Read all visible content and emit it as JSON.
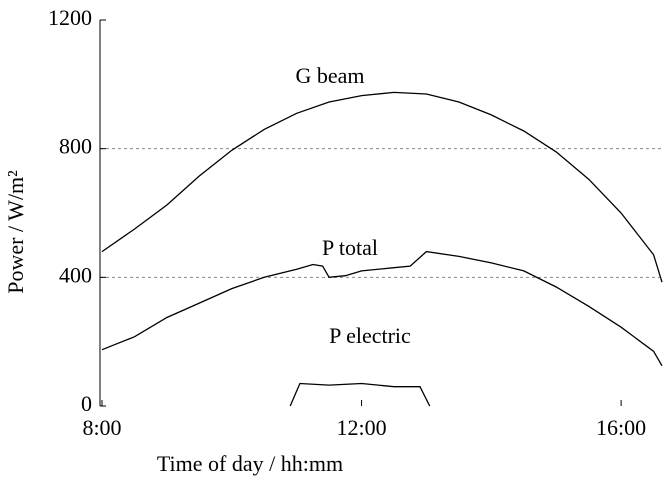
{
  "chart_data": {
    "type": "line",
    "xlabel": "Time of day / hh:mm",
    "ylabel": "Power / W/m²",
    "xlim": [
      8,
      16.63
    ],
    "ylim": [
      0,
      1200
    ],
    "xticks": [
      {
        "value": 8,
        "label": "8:00"
      },
      {
        "value": 12,
        "label": "12:00"
      },
      {
        "value": 16,
        "label": "16:00"
      }
    ],
    "yticks": [
      0,
      400,
      800,
      1200
    ],
    "grid_values": [
      400,
      800
    ],
    "series": [
      {
        "name": "G beam",
        "color": "#000000",
        "x": [
          8,
          8.5,
          9,
          9.5,
          10,
          10.5,
          11,
          11.5,
          12,
          12.5,
          13,
          13.5,
          14,
          14.5,
          15,
          15.5,
          16,
          16.5,
          16.63
        ],
        "values": [
          480,
          550,
          625,
          715,
          795,
          860,
          910,
          945,
          965,
          975,
          970,
          945,
          905,
          855,
          790,
          705,
          600,
          470,
          385
        ]
      },
      {
        "name": "P total",
        "color": "#000000",
        "x": [
          8,
          8.5,
          9,
          9.5,
          10,
          10.5,
          11,
          11.25,
          11.4,
          11.5,
          11.75,
          12,
          12.5,
          12.75,
          13,
          13.5,
          14,
          14.5,
          15,
          15.5,
          16,
          16.5,
          16.63
        ],
        "values": [
          175,
          215,
          275,
          320,
          365,
          400,
          425,
          440,
          435,
          400,
          405,
          420,
          430,
          435,
          480,
          465,
          445,
          420,
          370,
          310,
          245,
          170,
          125
        ]
      },
      {
        "name": "P electric",
        "color": "#000000",
        "x": [
          10.9,
          11.05,
          11.5,
          12,
          12.5,
          12.9,
          13.05
        ],
        "values": [
          0,
          70,
          65,
          70,
          60,
          60,
          0
        ]
      }
    ]
  }
}
